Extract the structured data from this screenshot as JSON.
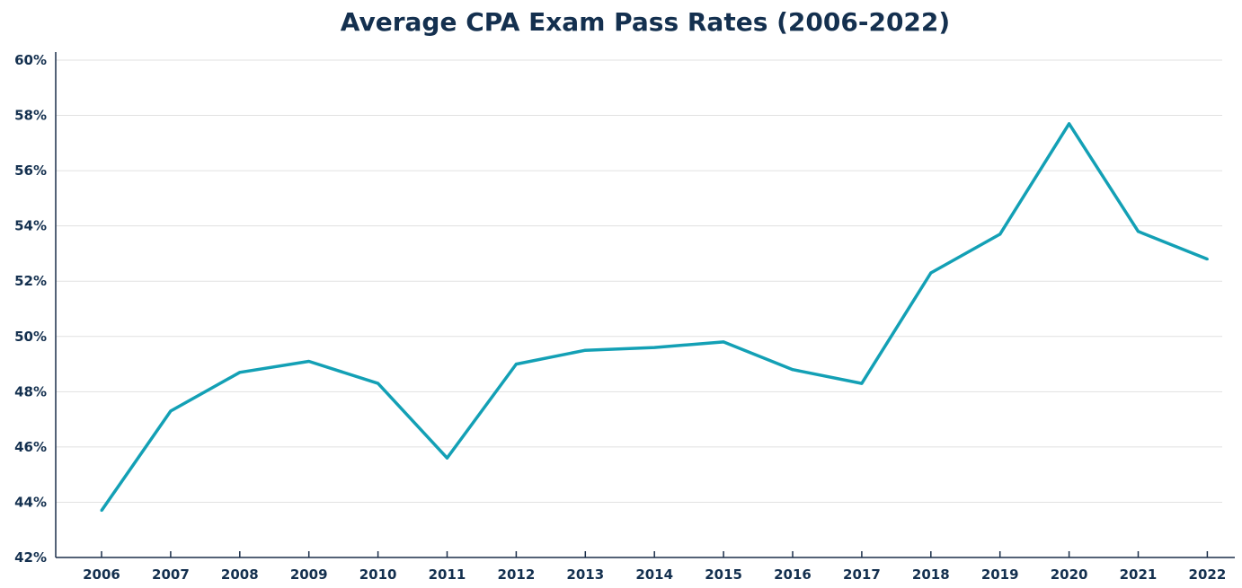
{
  "chart_data": {
    "type": "line",
    "title": "Average CPA Exam Pass Rates (2006-2022)",
    "xlabel": "",
    "ylabel": "",
    "categories": [
      "2006",
      "2007",
      "2008",
      "2009",
      "2010",
      "2011",
      "2012",
      "2013",
      "2014",
      "2015",
      "2016",
      "2017",
      "2018",
      "2019",
      "2020",
      "2021",
      "2022"
    ],
    "series": [
      {
        "values": [
          43.7,
          47.3,
          48.7,
          49.1,
          48.3,
          45.6,
          49.0,
          49.5,
          49.6,
          49.8,
          48.8,
          48.3,
          52.3,
          53.7,
          57.7,
          53.8,
          52.8
        ],
        "color": "#13a0b5"
      }
    ],
    "ylim": [
      42,
      60
    ],
    "yticks": [
      42,
      44,
      46,
      48,
      50,
      52,
      54,
      56,
      58,
      60
    ],
    "ytick_labels": [
      "42%",
      "44%",
      "46%",
      "48%",
      "50%",
      "52%",
      "54%",
      "56%",
      "58%",
      "60%"
    ],
    "grid": true,
    "legend": "none"
  }
}
